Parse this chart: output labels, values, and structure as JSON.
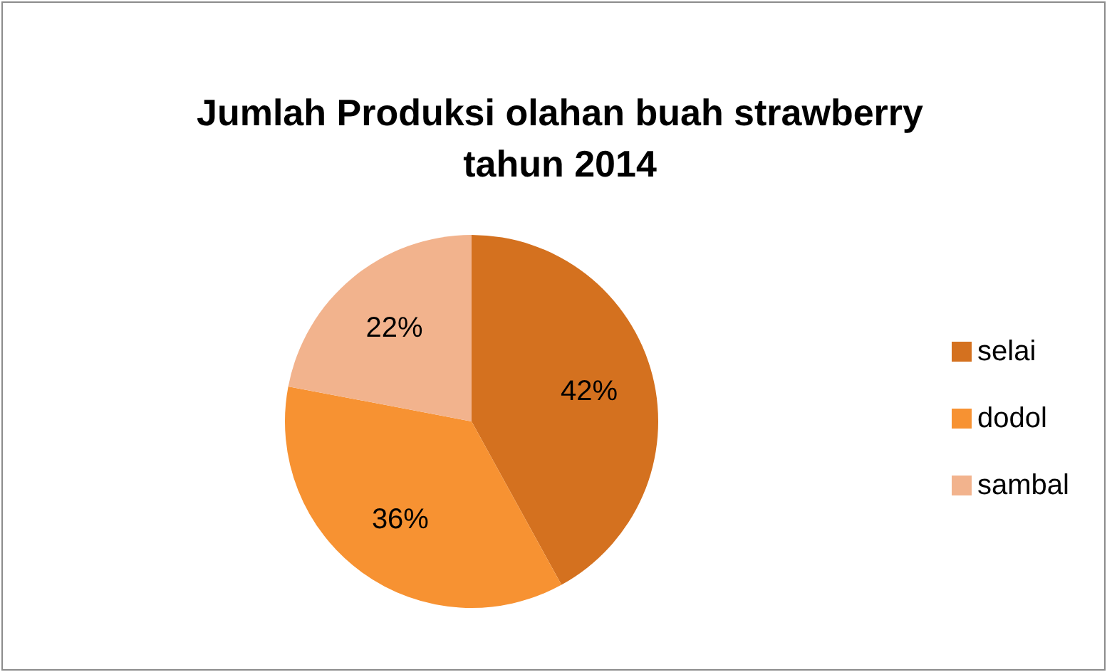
{
  "chart_data": {
    "type": "pie",
    "title": "Jumlah Produksi olahan buah strawberry tahun 2014",
    "categories": [
      "selai",
      "dodol",
      "sambal"
    ],
    "values": [
      42,
      36,
      22
    ],
    "colors": [
      "#d4711f",
      "#f79232",
      "#f2b38d"
    ],
    "value_labels": [
      "42%",
      "36%",
      "22%"
    ],
    "legend": "right"
  }
}
